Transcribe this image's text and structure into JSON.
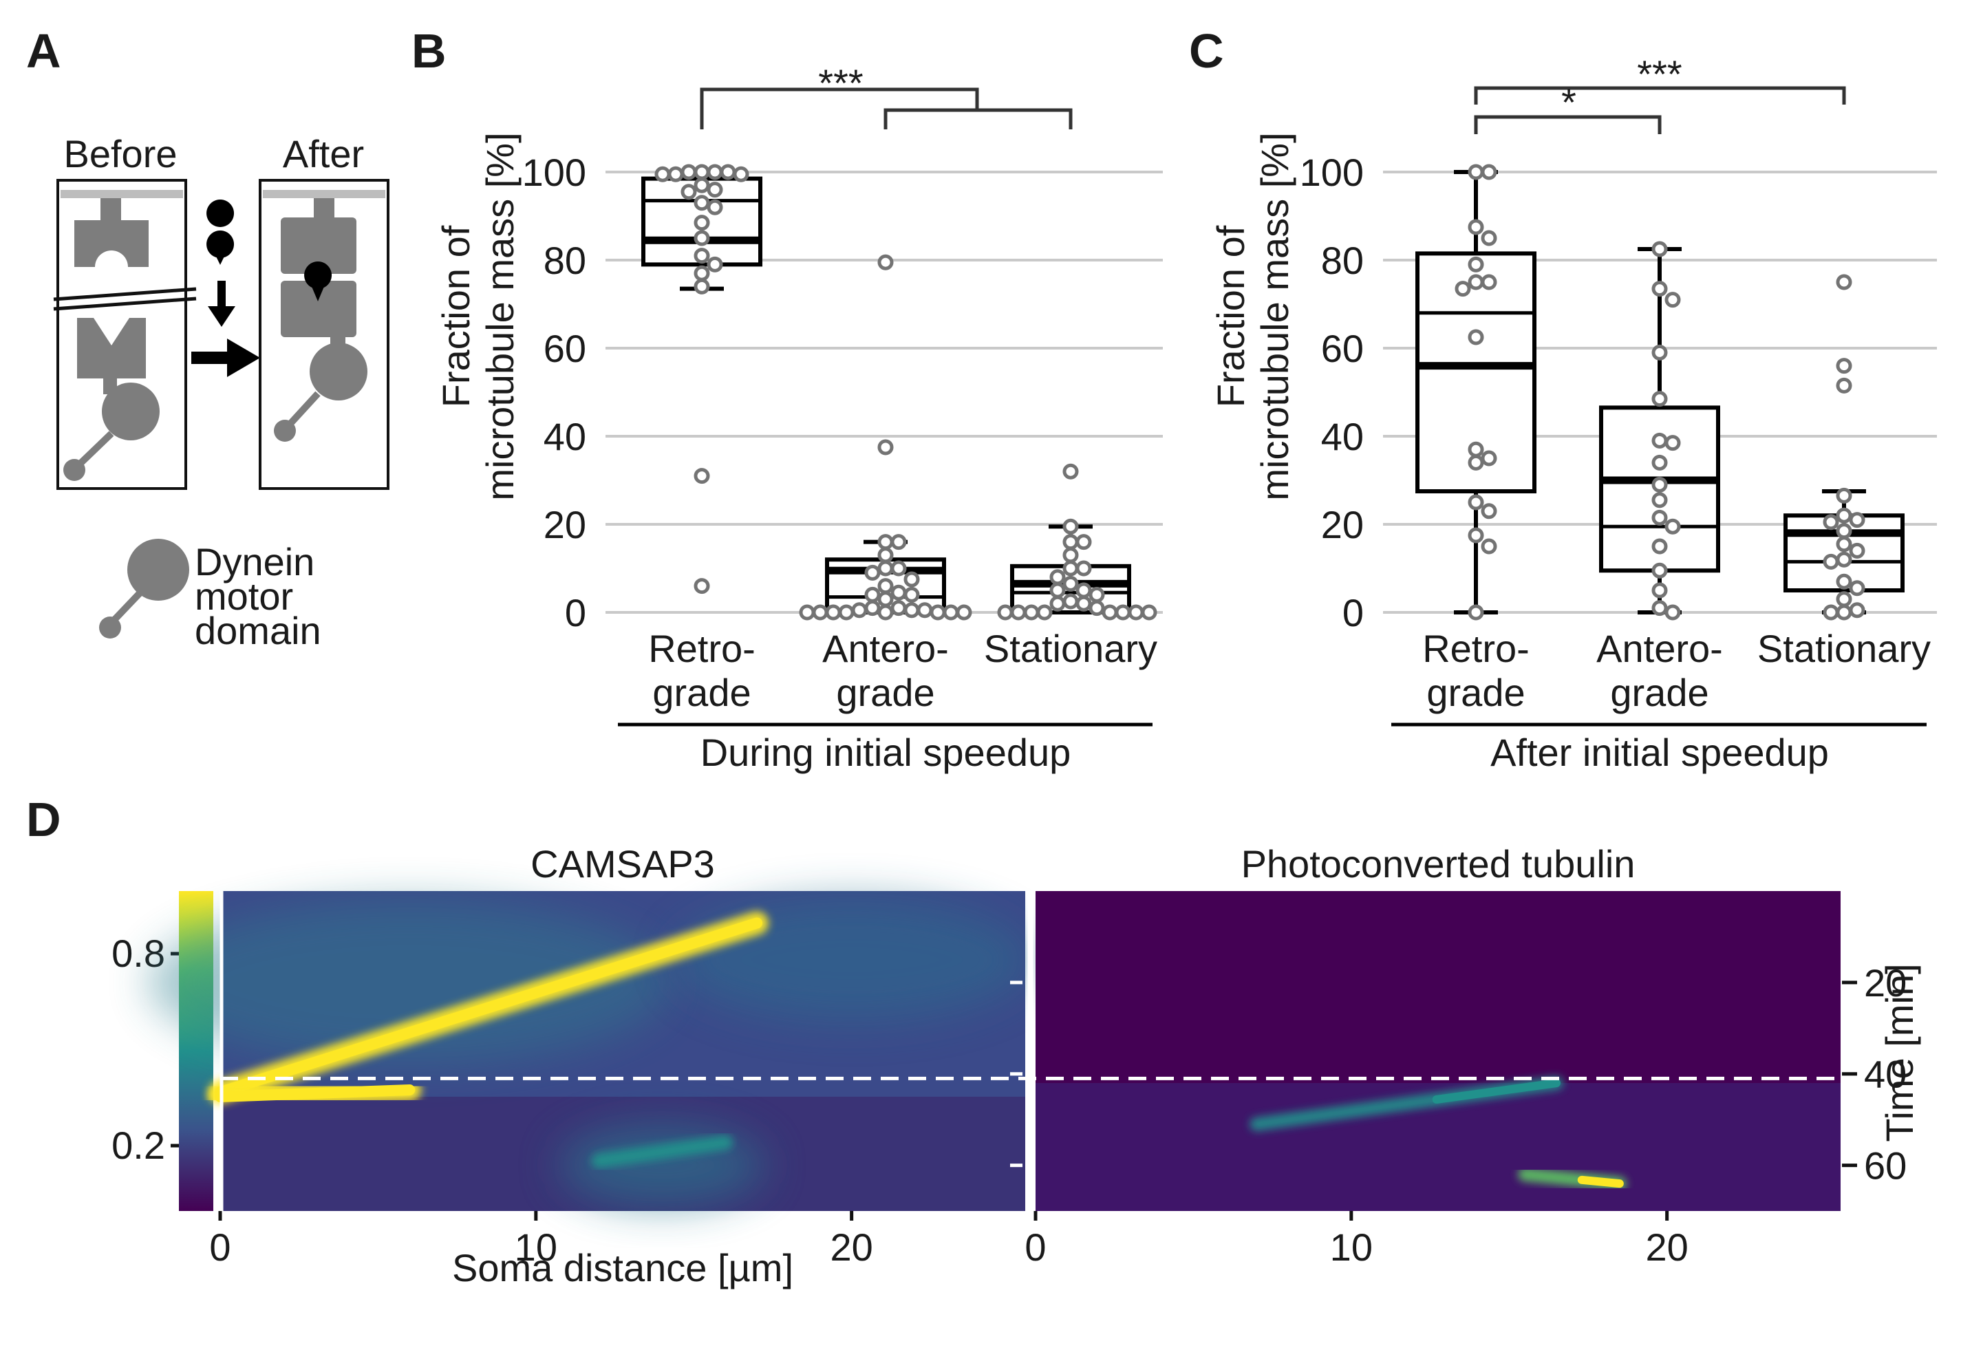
{
  "panels": {
    "a": {
      "letter": "A",
      "before_label": "Before",
      "after_label": "After",
      "legend_label_lines": [
        "Dynein",
        "motor",
        "domain"
      ]
    },
    "b": {
      "letter": "B",
      "ylabel_lines": [
        "Fraction of",
        "microtubule mass [%]"
      ],
      "group_label": "During initial speedup",
      "significance": [
        "***"
      ]
    },
    "c": {
      "letter": "C",
      "ylabel_lines": [
        "Fraction of",
        "microtubule mass [%]"
      ],
      "group_label": "After initial speedup",
      "significance": [
        "***",
        "*"
      ]
    },
    "d": {
      "letter": "D",
      "left_title": "CAMSAP3",
      "right_title": "Photoconverted tubulin",
      "xlabel": "Soma distance [µm]",
      "ylabel_right": "Time [min]",
      "colorbar_ticks": [
        "0.8",
        "0.2"
      ],
      "x_ticks": [
        "0",
        "10",
        "20"
      ],
      "time_ticks": [
        "20",
        "40",
        "60"
      ],
      "colormap": [
        "#440154",
        "#3b528b",
        "#21918c",
        "#5ec962",
        "#fde725"
      ]
    }
  },
  "chart_data": [
    {
      "type": "box",
      "panel": "B",
      "categories": [
        "Retro-\ngrade",
        "Antero-\ngrade",
        "Stationary"
      ],
      "category_lines": [
        [
          "Retro-",
          "grade"
        ],
        [
          "Antero-",
          "grade"
        ],
        [
          "Stationary"
        ]
      ],
      "group_label": "During initial speedup",
      "ylabel": "Fraction of microtubule mass [%]",
      "ylim": [
        0,
        100
      ],
      "yticks": [
        0,
        20,
        40,
        60,
        80,
        100
      ],
      "grid": true,
      "boxes": [
        {
          "whisker_low": 73.5,
          "q1": 79,
          "median": 84.5,
          "mean": 93.5,
          "q3": 98.5,
          "whisker_high": 98.5
        },
        {
          "whisker_low": 0,
          "q1": 0,
          "median": 9.5,
          "mean": 3.5,
          "q3": 12,
          "whisker_high": 16
        },
        {
          "whisker_low": 0,
          "q1": 0,
          "median": 6.5,
          "mean": 4.5,
          "q3": 10.5,
          "whisker_high": 19.5
        }
      ],
      "points": [
        [
          100,
          100,
          99.5,
          99.5,
          100,
          99.5,
          100,
          97,
          95.5,
          96,
          93,
          92,
          88.5,
          85,
          81,
          79,
          77,
          74,
          31,
          6
        ],
        [
          79.5,
          37.5,
          16,
          16,
          13,
          10,
          10,
          9,
          7.5,
          6,
          4.5,
          4,
          4,
          3,
          1,
          1,
          0.5,
          0.5,
          0.5,
          0,
          0,
          0,
          0,
          0,
          0,
          0,
          0
        ],
        [
          32,
          19.5,
          16,
          16,
          13,
          10,
          10,
          8,
          6.5,
          5,
          5,
          4,
          2.5,
          2,
          2,
          1,
          0,
          0,
          0,
          0,
          0,
          0,
          0,
          0
        ]
      ],
      "significance": [
        {
          "label": "***",
          "from": [
            0
          ],
          "to": [
            1,
            2
          ]
        }
      ]
    },
    {
      "type": "box",
      "panel": "C",
      "categories": [
        "Retro-\ngrade",
        "Antero-\ngrade",
        "Stationary"
      ],
      "category_lines": [
        [
          "Retro-",
          "grade"
        ],
        [
          "Antero-",
          "grade"
        ],
        [
          "Stationary"
        ]
      ],
      "group_label": "After initial speedup",
      "ylabel": "Fraction of microtubule mass [%]",
      "ylim": [
        0,
        100
      ],
      "yticks": [
        0,
        20,
        40,
        60,
        80,
        100
      ],
      "grid": true,
      "boxes": [
        {
          "whisker_low": 0,
          "q1": 27.5,
          "median": 56,
          "mean": 68,
          "q3": 81.5,
          "whisker_high": 100
        },
        {
          "whisker_low": 0,
          "q1": 9.5,
          "median": 30,
          "mean": 19.5,
          "q3": 46.5,
          "whisker_high": 82.5
        },
        {
          "whisker_low": 0,
          "q1": 5,
          "median": 18,
          "mean": 11.5,
          "q3": 22,
          "whisker_high": 27.5
        }
      ],
      "points": [
        [
          100,
          100,
          87.5,
          85,
          79,
          75,
          75,
          73.5,
          62.5,
          37,
          35,
          34,
          25,
          23,
          17.5,
          15,
          0
        ],
        [
          82.5,
          73.5,
          71,
          59,
          48.5,
          39,
          38.5,
          34,
          29,
          25.5,
          21.5,
          19.5,
          15,
          9.5,
          5,
          1,
          0
        ],
        [
          75,
          56,
          51.5,
          26.5,
          22,
          21,
          20.5,
          18.5,
          15.5,
          14,
          12,
          11.5,
          7,
          5.5,
          3,
          0.5,
          0,
          0
        ]
      ],
      "significance": [
        {
          "label": "***",
          "from": [
            0
          ],
          "to": [
            2
          ]
        },
        {
          "label": "*",
          "from": [
            0
          ],
          "to": [
            1
          ]
        }
      ]
    },
    {
      "type": "heatmap",
      "panel": "D",
      "subplots": [
        "CAMSAP3",
        "Photoconverted tubulin"
      ],
      "xlabel": "Soma distance [µm]",
      "ylabel": "Time [min]",
      "xlim": [
        0,
        25.5
      ],
      "ylim": [
        70,
        0
      ],
      "xticks": [
        0,
        10,
        20
      ],
      "yticks": [
        20,
        40,
        60
      ],
      "colorbar_ticks": [
        0.2,
        0.8
      ],
      "colorbar_range": [
        0,
        1
      ],
      "speedup_time_min": 41,
      "camsap3_tracks": [
        {
          "x0": 0,
          "t0": 44,
          "x1": 17,
          "t1": 7,
          "intensity": 0.95
        },
        {
          "x0": 0,
          "t0": 45,
          "x1": 6,
          "t1": 43.5,
          "intensity": 1
        },
        {
          "x0": 5.5,
          "t0": 44,
          "x1": 16,
          "t1": 44,
          "intensity": 0.55
        },
        {
          "x0": 12,
          "t0": 59,
          "x1": 16,
          "t1": 55,
          "intensity": 0.45
        }
      ],
      "photoconverted_tracks": [
        {
          "x0": 7,
          "t0": 51,
          "x1": 16.5,
          "t1": 42,
          "intensity": 0.6
        },
        {
          "x0": 15.5,
          "t0": 62,
          "x1": 18.5,
          "t1": 64,
          "intensity": 1
        }
      ]
    }
  ]
}
